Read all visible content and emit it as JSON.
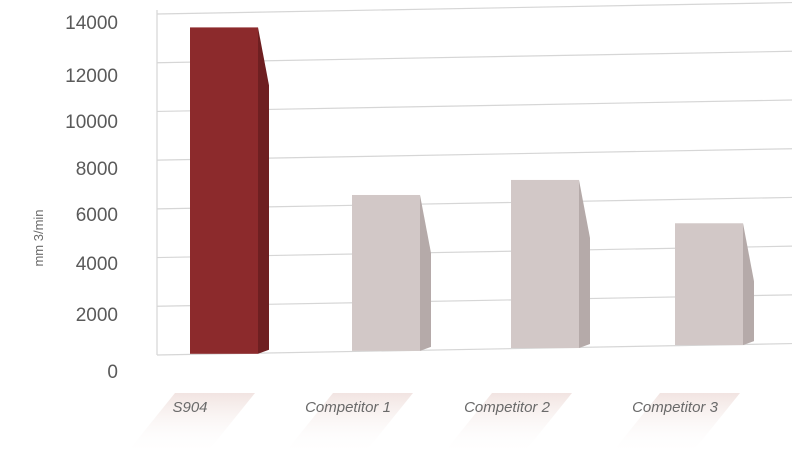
{
  "chart_data": {
    "type": "bar",
    "title": "",
    "xlabel": "",
    "ylabel": "mm 3/min",
    "categories": [
      "S904",
      "Competitor 1",
      "Competitor 2",
      "Competitor 3"
    ],
    "values": [
      13400,
      6400,
      6900,
      5000
    ],
    "ylim": [
      0,
      14000
    ],
    "yticks": [
      "0",
      "2000",
      "4000",
      "6000",
      "8000",
      "10000",
      "12000",
      "14000"
    ],
    "grid": true,
    "legend": "none",
    "colors": {
      "highlight": "#8c2a2c",
      "highlight_side": "#6e1f21",
      "default": "#d2c8c7",
      "default_side": "#b5aaa9",
      "grid": "#d6d6d6",
      "label_shadow": "#f3e7e4"
    }
  }
}
